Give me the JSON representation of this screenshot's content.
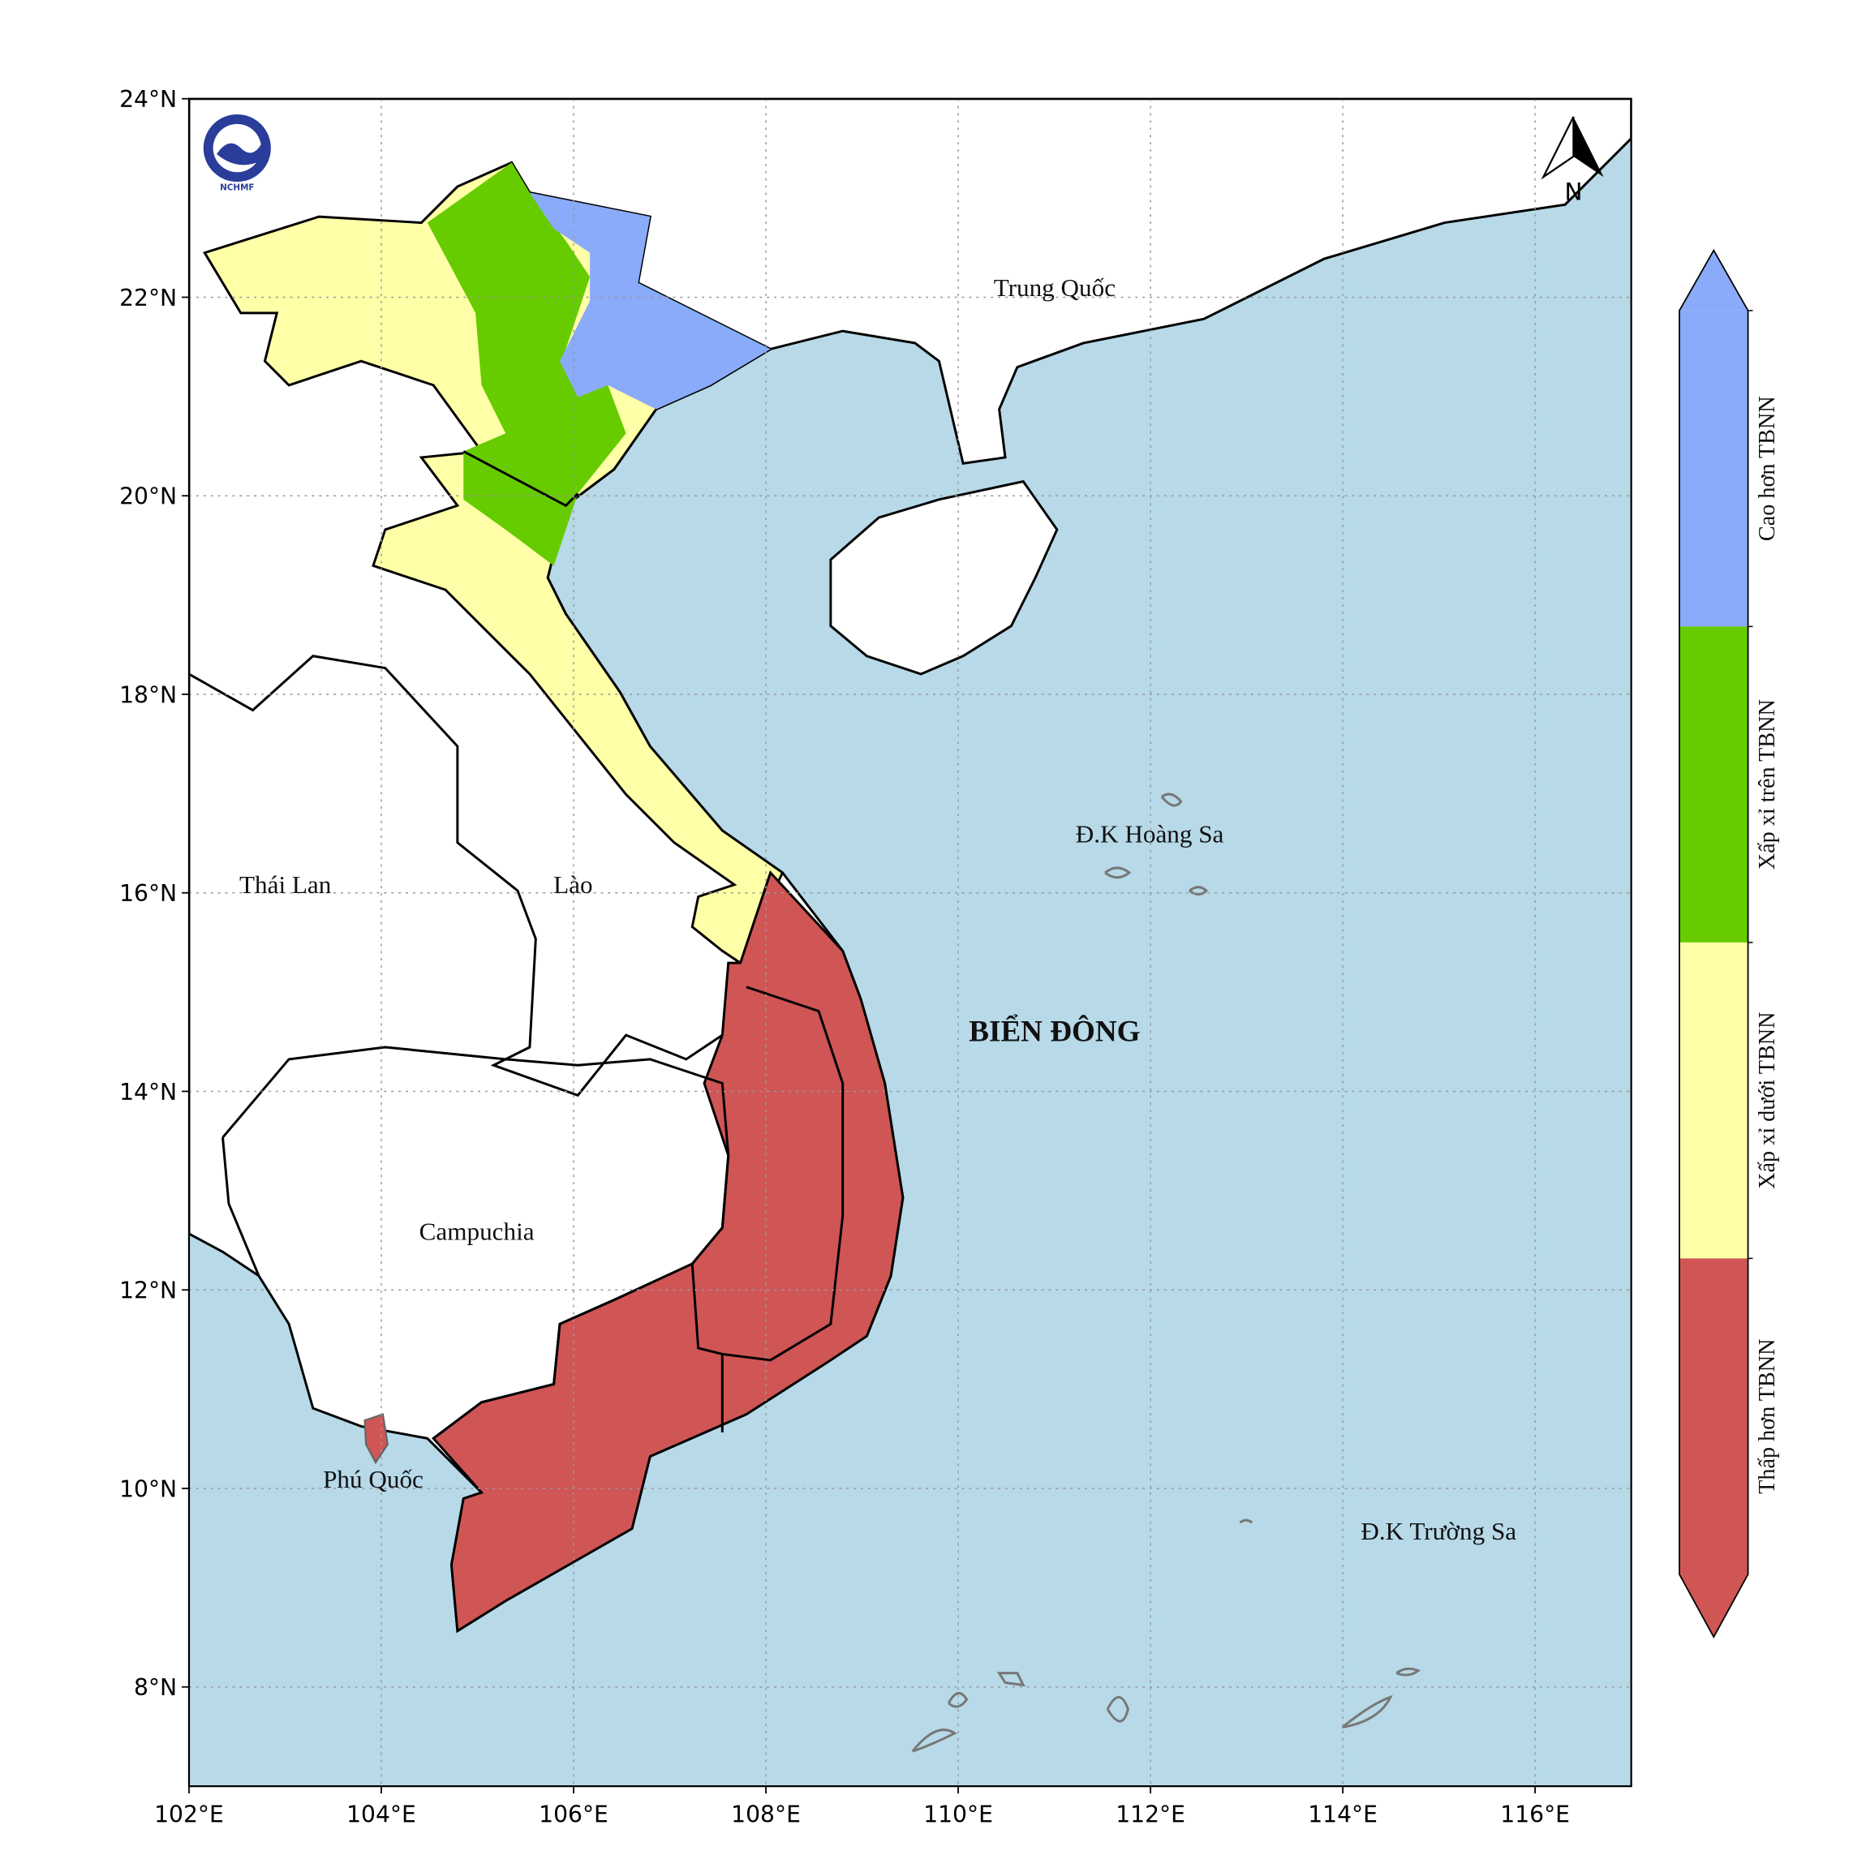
{
  "map": {
    "lon_range": [
      102,
      117
    ],
    "lat_range": [
      7,
      24
    ],
    "lon_ticks": [
      {
        "value": 102,
        "label": "102°E"
      },
      {
        "value": 104,
        "label": "104°E"
      },
      {
        "value": 106,
        "label": "106°E"
      },
      {
        "value": 108,
        "label": "108°E"
      },
      {
        "value": 110,
        "label": "110°E"
      },
      {
        "value": 112,
        "label": "112°E"
      },
      {
        "value": 114,
        "label": "114°E"
      },
      {
        "value": 116,
        "label": "116°E"
      }
    ],
    "lat_ticks": [
      {
        "value": 8,
        "label": "8°N"
      },
      {
        "value": 10,
        "label": "10°N"
      },
      {
        "value": 12,
        "label": "12°N"
      },
      {
        "value": 14,
        "label": "14°N"
      },
      {
        "value": 16,
        "label": "16°N"
      },
      {
        "value": 18,
        "label": "18°N"
      },
      {
        "value": 20,
        "label": "20°N"
      },
      {
        "value": 22,
        "label": "22°N"
      },
      {
        "value": 24,
        "label": "24°N"
      }
    ],
    "grid": true,
    "places": {
      "china": "Trung Quốc",
      "thailand": "Thái Lan",
      "laos": "Lào",
      "cambodia": "Campuchia",
      "phu_quoc": "Phú Quốc",
      "hoang_sa": "Đ.K Hoàng Sa",
      "sea": "BIỂN ĐÔNG",
      "truong_sa": "Đ.K Trường Sa"
    },
    "logo": "NCHMF",
    "north": "N"
  },
  "legend": {
    "items": [
      {
        "label": "Cao hơn TBNN",
        "color": "#8aabfa"
      },
      {
        "label": "Xấp xỉ trên TBNN",
        "color": "#66cc00"
      },
      {
        "label": "Xấp xỉ dưới TBNN",
        "color": "#ffffa8"
      },
      {
        "label": "Thấp hơn TBNN",
        "color": "#d05555"
      }
    ]
  }
}
